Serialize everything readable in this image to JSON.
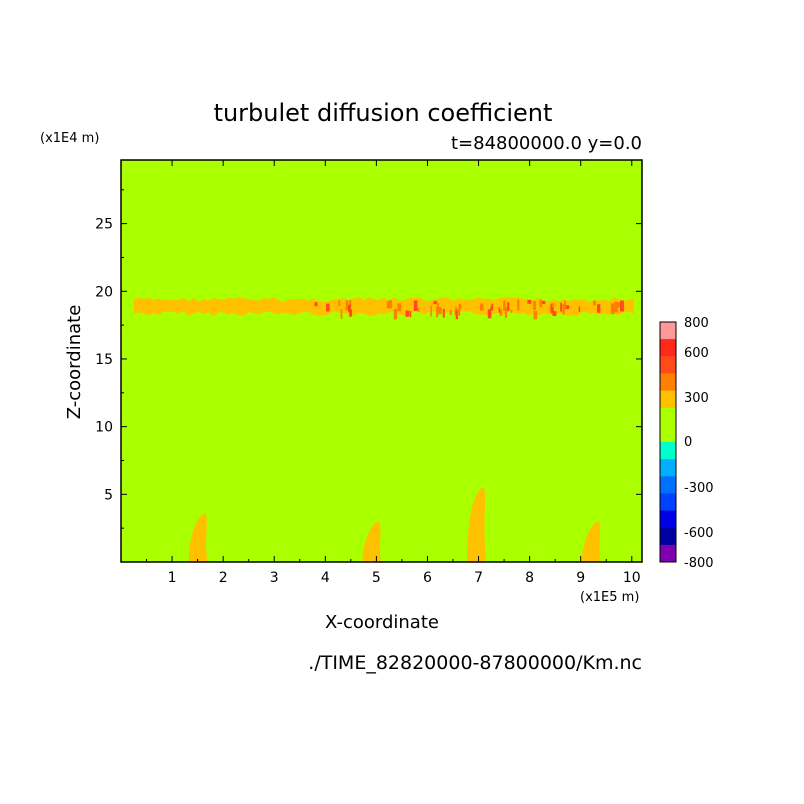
{
  "chart_data": {
    "type": "heatmap",
    "title": "turbulet diffusion coefficient",
    "subtitle": "t=84800000.0 y=0.0",
    "xlabel": "X-coordinate",
    "ylabel": "Z-coordinate",
    "x_unit": "(x1E5 m)",
    "y_unit": "(x1E4 m)",
    "xlim": [
      0,
      10.2
    ],
    "ylim": [
      0,
      29.7
    ],
    "x_ticks": [
      "1",
      "2",
      "3",
      "4",
      "5",
      "6",
      "7",
      "8",
      "9",
      "10"
    ],
    "y_ticks": [
      "5",
      "10",
      "15",
      "20",
      "25"
    ],
    "background_value": 0,
    "features": [
      {
        "name": "upper layer",
        "band": "300",
        "x_range": [
          0.25,
          10.1
        ],
        "z_range": [
          18.4,
          19.5
        ]
      },
      {
        "name": "upper layer peaks",
        "band": "600",
        "x_range": [
          3.7,
          9.9
        ],
        "z_range": [
          18.5,
          19.4
        ]
      },
      {
        "name": "surface plume",
        "band": "300",
        "x": 1.6,
        "z_top": 3.6
      },
      {
        "name": "surface plume",
        "band": "300",
        "x": 5.0,
        "z_top": 3.0
      },
      {
        "name": "surface plume",
        "band": "300",
        "x": 7.05,
        "z_top": 5.5
      },
      {
        "name": "surface plume",
        "band": "300",
        "x": 9.3,
        "z_top": 3.0
      }
    ],
    "colorbar": {
      "labels": [
        "800",
        "600",
        "300",
        "0",
        "-300",
        "-600",
        "-800"
      ],
      "bands": [
        {
          "upper": "800",
          "color": "#ff9999"
        },
        {
          "upper": "700",
          "color": "#ff2a1a"
        },
        {
          "upper": "600",
          "color": "#ff4a1a"
        },
        {
          "upper": "450",
          "color": "#ff8000"
        },
        {
          "upper": "300",
          "color": "#ffc000"
        },
        {
          "upper": "150",
          "color": "#aaff00"
        },
        {
          "upper": "0",
          "color": "#aaff00"
        },
        {
          "upper": "-75",
          "color": "#00ffcc"
        },
        {
          "upper": "-150",
          "color": "#00b0ff"
        },
        {
          "upper": "-300",
          "color": "#0070ff"
        },
        {
          "upper": "-450",
          "color": "#0040ff"
        },
        {
          "upper": "-600",
          "color": "#0000e6"
        },
        {
          "upper": "-700",
          "color": "#0000a0"
        },
        {
          "upper": "-750",
          "color": "#8000b0"
        }
      ]
    },
    "file_label": "./TIME_82820000-87800000/Km.nc"
  }
}
